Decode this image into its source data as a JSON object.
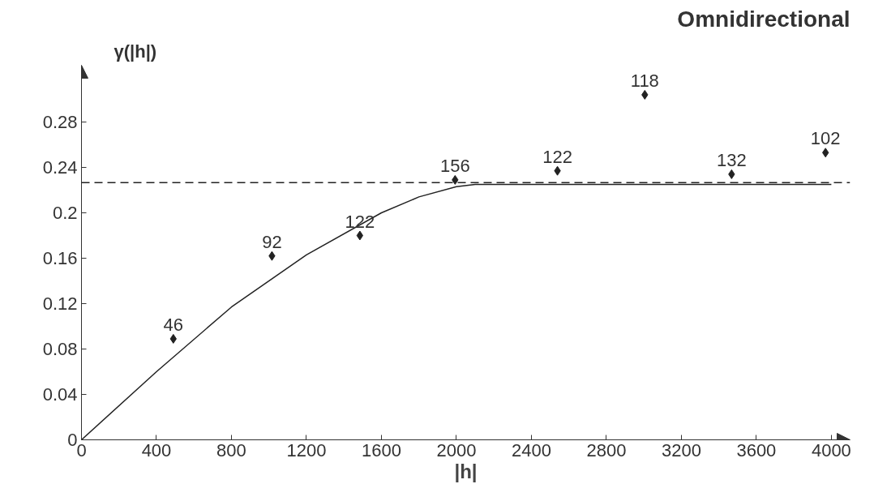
{
  "chart_data": {
    "type": "scatter",
    "title": "Omnidirectional",
    "xlabel": "|h|",
    "ylabel": "γ(|h|)",
    "xlim": [
      0,
      4100
    ],
    "ylim": [
      0,
      0.33
    ],
    "xticks": [
      0,
      400,
      800,
      1200,
      1600,
      2000,
      2400,
      2800,
      3200,
      3600,
      4000
    ],
    "yticks": [
      0,
      0.04,
      0.08,
      0.12,
      0.16,
      0.2,
      0.24,
      0.28
    ],
    "grid": false,
    "marker": "diamond",
    "series": [
      {
        "color": "#222222",
        "x": [
          490,
          1016,
          1485,
          1993,
          2539,
          3005,
          3468,
          3969
        ],
        "values": [
          0.089,
          0.162,
          0.18,
          0.229,
          0.237,
          0.304,
          0.234,
          0.253
        ]
      },
      {
        "type": "line",
        "color": "#222222",
        "line_style": "solid",
        "marker": "none",
        "x": [
          0,
          400,
          800,
          1200,
          1600,
          1800,
          2000,
          2100,
          4000
        ],
        "values": [
          0,
          0.06,
          0.117,
          0.163,
          0.2,
          0.214,
          0.223,
          0.225,
          0.225
        ]
      }
    ],
    "annotations": [
      {
        "text": "46",
        "x": 490,
        "y": 0.089
      },
      {
        "text": "92",
        "x": 1016,
        "y": 0.162
      },
      {
        "text": "122",
        "x": 1485,
        "y": 0.18
      },
      {
        "text": "156",
        "x": 1993,
        "y": 0.229
      },
      {
        "text": "122",
        "x": 2539,
        "y": 0.237
      },
      {
        "text": "118",
        "x": 3005,
        "y": 0.304
      },
      {
        "text": "132",
        "x": 3468,
        "y": 0.234
      },
      {
        "text": "102",
        "x": 3969,
        "y": 0.253
      }
    ],
    "ref_lines": [
      {
        "axis": "y",
        "value": 0.2266,
        "color": "#222222",
        "line_style": "dashed"
      }
    ]
  }
}
